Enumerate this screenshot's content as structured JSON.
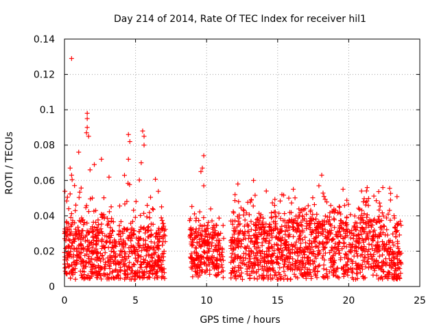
{
  "chart_data": {
    "type": "scatter",
    "title": "Day 214 of 2014, Rate Of TEC Index for receiver hil1",
    "xlabel": "GPS time / hours",
    "ylabel": "ROTI / TECUs",
    "xlim": [
      0,
      25
    ],
    "ylim": [
      0,
      0.14
    ],
    "x_ticks": [
      0,
      5,
      10,
      15,
      20,
      25
    ],
    "x_tick_labels": [
      "0",
      "5",
      "10",
      "15",
      "20",
      "25"
    ],
    "y_ticks": [
      0,
      0.02,
      0.04,
      0.06,
      0.08,
      0.1,
      0.12,
      0.14
    ],
    "y_tick_labels": [
      "0",
      "0.02",
      "0.04",
      "0.06",
      "0.08",
      "0.1",
      "0.12",
      "0.14"
    ],
    "grid": true,
    "marker": "+",
    "color": "#ff0000",
    "series": [
      {
        "name": "ROTI",
        "segments": [
          {
            "x_start": 0.0,
            "x_end": 7.1,
            "base_min": 0.004,
            "base_max": 0.032,
            "peak": 0.07
          },
          {
            "x_start": 8.8,
            "x_end": 11.2,
            "base_min": 0.005,
            "base_max": 0.03,
            "peak": 0.047
          },
          {
            "x_start": 11.7,
            "x_end": 23.7,
            "base_min": 0.004,
            "base_max": 0.035,
            "peak": 0.058
          }
        ],
        "points": [
          {
            "x": 0.5,
            "y": 0.129
          },
          {
            "x": 1.6,
            "y": 0.098
          },
          {
            "x": 1.6,
            "y": 0.095
          },
          {
            "x": 1.6,
            "y": 0.09
          },
          {
            "x": 1.55,
            "y": 0.087
          },
          {
            "x": 1.7,
            "y": 0.085
          },
          {
            "x": 4.5,
            "y": 0.086
          },
          {
            "x": 4.6,
            "y": 0.082
          },
          {
            "x": 5.5,
            "y": 0.088
          },
          {
            "x": 5.6,
            "y": 0.085
          },
          {
            "x": 5.6,
            "y": 0.08
          },
          {
            "x": 1.0,
            "y": 0.076
          },
          {
            "x": 2.6,
            "y": 0.072
          },
          {
            "x": 4.5,
            "y": 0.072
          },
          {
            "x": 5.4,
            "y": 0.07
          },
          {
            "x": 9.8,
            "y": 0.074
          },
          {
            "x": 9.7,
            "y": 0.067
          },
          {
            "x": 9.6,
            "y": 0.065
          },
          {
            "x": 2.1,
            "y": 0.069
          },
          {
            "x": 0.4,
            "y": 0.067
          },
          {
            "x": 0.5,
            "y": 0.063
          },
          {
            "x": 1.8,
            "y": 0.066
          },
          {
            "x": 18.1,
            "y": 0.063
          },
          {
            "x": 13.3,
            "y": 0.06
          },
          {
            "x": 12.2,
            "y": 0.058
          },
          {
            "x": 9.8,
            "y": 0.057
          },
          {
            "x": 21.3,
            "y": 0.056
          },
          {
            "x": 22.4,
            "y": 0.056
          },
          {
            "x": 17.9,
            "y": 0.057
          },
          {
            "x": 16.1,
            "y": 0.055
          },
          {
            "x": 19.6,
            "y": 0.055
          },
          {
            "x": 14.2,
            "y": 0.054
          },
          {
            "x": 0.3,
            "y": 0.044
          },
          {
            "x": 12.0,
            "y": 0.052
          },
          {
            "x": 15.3,
            "y": 0.052
          },
          {
            "x": 20.9,
            "y": 0.054
          }
        ]
      }
    ]
  }
}
